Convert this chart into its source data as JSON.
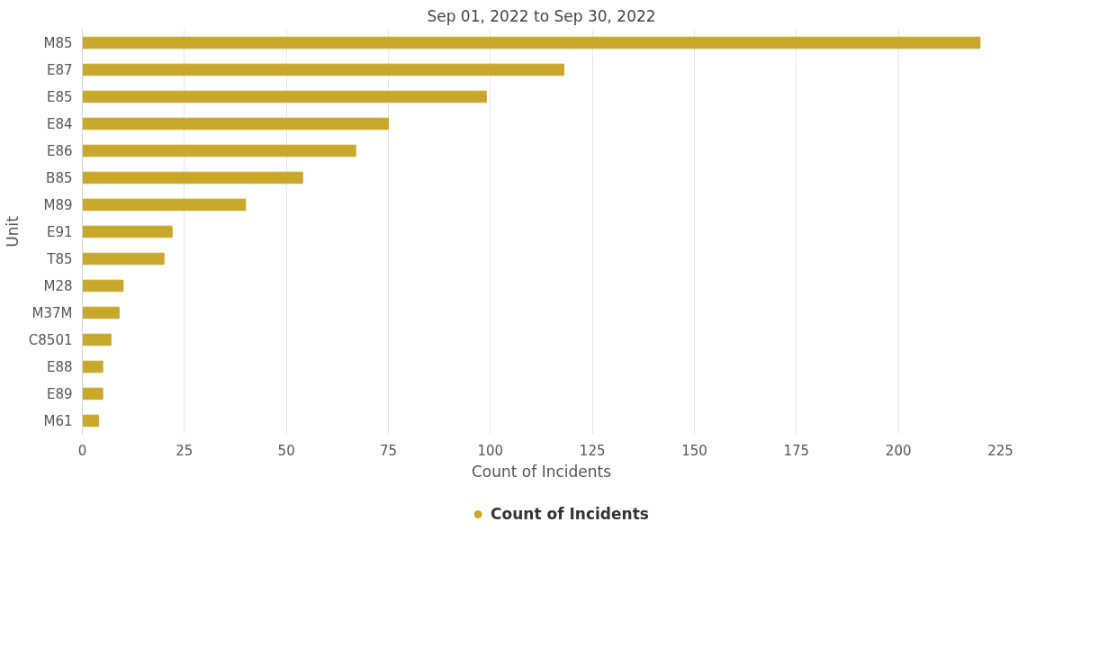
{
  "chart_data": {
    "type": "bar",
    "orientation": "horizontal",
    "title": "Sep 01, 2022 to Sep 30, 2022",
    "xlabel": "Count of Incidents",
    "ylabel": "Unit",
    "categories": [
      "M85",
      "E87",
      "E85",
      "E84",
      "E86",
      "B85",
      "M89",
      "E91",
      "T85",
      "M28",
      "M37M",
      "C8501",
      "E88",
      "E89",
      "M61"
    ],
    "series": [
      {
        "name": "Count of Incidents",
        "color": "#c8a82a",
        "values": [
          220,
          118,
          99,
          75,
          67,
          54,
          40,
          22,
          20,
          10,
          9,
          7,
          5,
          5,
          4
        ]
      }
    ],
    "xlim": [
      0,
      225
    ],
    "xticks": [
      0,
      25,
      50,
      75,
      100,
      125,
      150,
      175,
      200,
      225
    ],
    "grid": "x",
    "legend": "bottom"
  }
}
